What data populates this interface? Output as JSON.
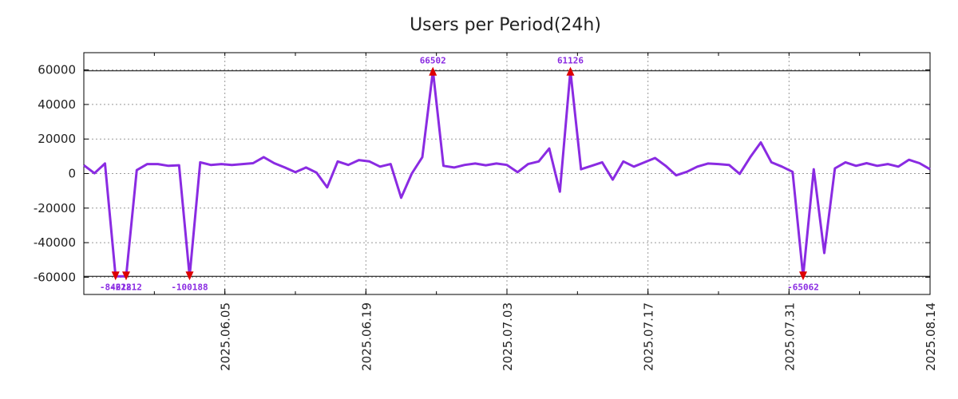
{
  "chart_data": {
    "type": "line",
    "title": "Users per Period(24h)",
    "xlabel": "",
    "ylabel": "",
    "grid": true,
    "x_start": "2025-05-22",
    "x_end": "2025-08-14",
    "ylim": [
      -70000,
      70000
    ],
    "clip_band": [
      -59500,
      59500
    ],
    "yticks": [
      60000,
      40000,
      20000,
      0,
      -20000,
      -40000,
      -60000
    ],
    "ytick_labels": [
      "60000",
      "40000",
      "20000",
      "0",
      "-20000",
      "-40000",
      "-60000"
    ],
    "xticks": [
      "2025-06-05",
      "2025-06-19",
      "2025-07-03",
      "2025-07-17",
      "2025-07-31",
      "2025-08-14"
    ],
    "xtick_labels": [
      "2025.06.05",
      "2025.06.19",
      "2025.07.03",
      "2025.07.17",
      "2025.07.31",
      "2025.08.14"
    ],
    "line_color": "#8a2be2",
    "marker_color": "#dd0000",
    "series": [
      {
        "name": "users",
        "values": [
          4800,
          200,
          5800,
          -84222,
          -61812,
          2000,
          5500,
          5500,
          4500,
          4800,
          -100188,
          6500,
          5000,
          5500,
          5000,
          5500,
          6000,
          9500,
          6000,
          3500,
          800,
          3500,
          500,
          -8000,
          7000,
          5000,
          7800,
          7000,
          4000,
          5500,
          -14000,
          0,
          9500,
          66502,
          4500,
          3500,
          5000,
          5800,
          4800,
          5800,
          5000,
          800,
          5500,
          7000,
          14500,
          -10500,
          61126,
          2500,
          4500,
          6500,
          -3500,
          7000,
          4000,
          6500,
          9000,
          4500,
          -1000,
          1000,
          4000,
          5800,
          5500,
          5000,
          -200,
          9500,
          18000,
          6500,
          4000,
          1000,
          -65062,
          2500,
          -46000,
          3000,
          6500,
          4500,
          6000,
          4500,
          5500,
          4000,
          8000,
          6000,
          2500
        ]
      }
    ],
    "annotations": [
      {
        "label": "-84222",
        "index": 3,
        "side": "bottom"
      },
      {
        "label": "-61812",
        "index": 4,
        "side": "bottom"
      },
      {
        "label": "-100188",
        "index": 10,
        "side": "bottom"
      },
      {
        "label": "66502",
        "index": 33,
        "side": "top"
      },
      {
        "label": "61126",
        "index": 46,
        "side": "top"
      },
      {
        "label": "-65062",
        "index": 68,
        "side": "bottom"
      }
    ]
  }
}
